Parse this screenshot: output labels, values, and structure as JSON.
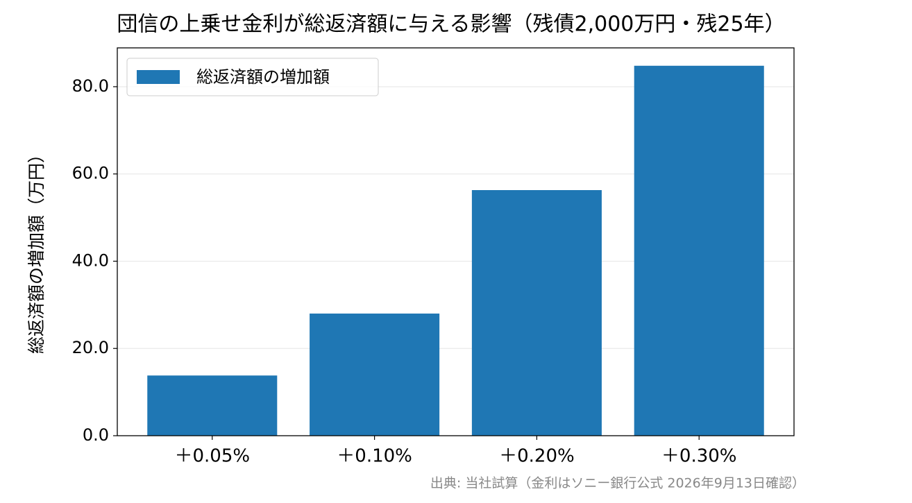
{
  "chart_data": {
    "type": "bar",
    "title": "団信の上乗せ金利が総返済額に与える影響（残債2,000万円・残25年）",
    "y_label": "総返済額の増加額（万円）",
    "source": "出典: 当社試算（金利はソニー銀行公式 2026年9月13日確認）",
    "categories": [
      "＋0.05%",
      "＋0.10%",
      "＋0.20%",
      "＋0.30%"
    ],
    "series": [
      {
        "name": "総返済額の増加額",
        "color": "#1f77b4",
        "values": [
          13.8,
          28.0,
          56.3,
          84.8
        ]
      }
    ],
    "ylim": [
      0,
      88.9
    ],
    "yticks": [
      {
        "value": 0,
        "label": "0.0"
      },
      {
        "value": 20,
        "label": "20.0"
      },
      {
        "value": 40,
        "label": "40.0"
      },
      {
        "value": 60,
        "label": "60.0"
      },
      {
        "value": 80,
        "label": "80.0"
      }
    ],
    "grid": true,
    "legend": "upper-left"
  }
}
